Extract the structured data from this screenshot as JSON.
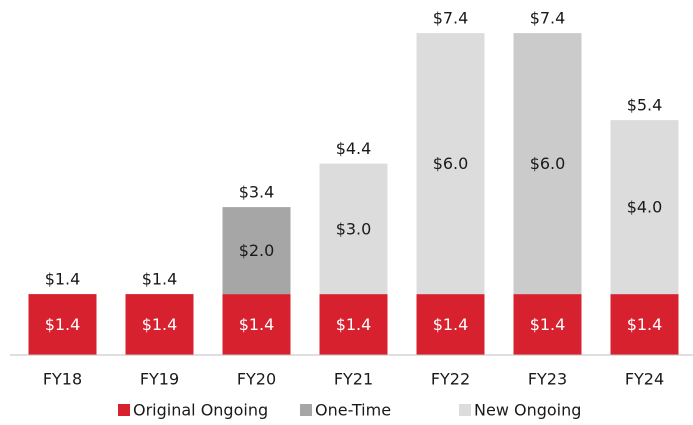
{
  "chart_data": {
    "type": "stacked_bar",
    "categories": [
      "FY18",
      "FY19",
      "FY20",
      "FY21",
      "FY22",
      "FY23",
      "FY24"
    ],
    "series": [
      {
        "name": "Original Ongoing",
        "color": "#d7212f",
        "values": [
          1.4,
          1.4,
          1.4,
          1.4,
          1.4,
          1.4,
          1.4
        ],
        "value_labels": [
          "$1.4",
          "$1.4",
          "$1.4",
          "$1.4",
          "$1.4",
          "$1.4",
          "$1.4"
        ]
      },
      {
        "name": "One-Time",
        "color": "#a6a6a6",
        "values": [
          null,
          null,
          2.0,
          null,
          null,
          null,
          null
        ],
        "value_labels": [
          null,
          null,
          "$2.0",
          null,
          null,
          null,
          null
        ]
      },
      {
        "name": "New Ongoing",
        "color": "#dcdcdc",
        "colors": [
          "#dcdcdc",
          "#dcdcdc",
          "#dcdcdc",
          "#dcdcdc",
          "#dcdcdc",
          "#cbcbcb",
          "#dcdcdc"
        ],
        "values": [
          null,
          null,
          null,
          3.0,
          6.0,
          6.0,
          4.0
        ],
        "value_labels": [
          null,
          null,
          null,
          "$3.0",
          "$6.0",
          "$6.0",
          "$4.0"
        ]
      }
    ],
    "totals": [
      1.4,
      1.4,
      3.4,
      4.4,
      7.4,
      7.4,
      5.4
    ],
    "total_labels": [
      "$1.4",
      "$1.4",
      "$3.4",
      "$4.4",
      "$7.4",
      "$7.4",
      "$5.4"
    ],
    "ylim": [
      0,
      8
    ],
    "legend": "bottom"
  }
}
